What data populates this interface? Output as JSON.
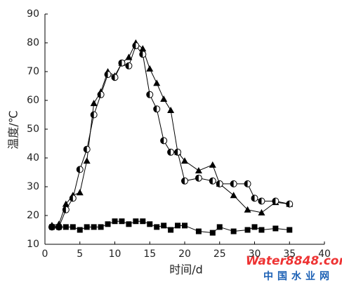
{
  "chart_data": {
    "type": "line",
    "xlabel": "时间/d",
    "ylabel": "温度/℃",
    "xlim": [
      0,
      40
    ],
    "xticks": [
      0,
      5,
      10,
      15,
      20,
      25,
      30,
      35,
      40
    ],
    "ylim": [
      10,
      90
    ],
    "yticks": [
      10,
      20,
      30,
      40,
      50,
      60,
      70,
      80,
      90
    ],
    "series": [
      {
        "marker": "triangle",
        "color": "#000000",
        "x": [
          1,
          2,
          3,
          4,
          5,
          6,
          7,
          8,
          9,
          10,
          11,
          12,
          13,
          14,
          15,
          16,
          17,
          18,
          19,
          20,
          22,
          24,
          25,
          27,
          29,
          31,
          33,
          35
        ],
        "values": [
          16.6,
          17,
          24,
          27,
          28,
          39,
          59,
          63,
          70,
          68.5,
          73,
          75,
          80,
          78,
          71,
          66,
          60.5,
          56.6,
          42,
          39,
          35.6,
          37.6,
          31,
          27,
          22,
          21,
          24.6,
          24
        ]
      },
      {
        "marker": "circle",
        "color": "#000000",
        "x": [
          1,
          2,
          3,
          4,
          5,
          6,
          7,
          8,
          9,
          10,
          11,
          12,
          13,
          14,
          15,
          16,
          17,
          18,
          19,
          20,
          22,
          24,
          25,
          27,
          29,
          30,
          31,
          33,
          35
        ],
        "values": [
          16,
          16,
          22,
          26,
          36,
          43,
          55,
          62,
          69,
          68,
          73,
          72,
          79,
          76,
          62,
          57,
          46,
          42,
          42,
          32,
          33,
          32,
          31,
          31,
          31,
          26,
          25,
          25,
          24
        ]
      },
      {
        "marker": "square",
        "color": "#000000",
        "x": [
          1,
          2,
          3,
          4,
          5,
          6,
          7,
          8,
          9,
          10,
          11,
          12,
          13,
          14,
          15,
          16,
          17,
          18,
          19,
          20,
          22,
          24,
          25,
          27,
          29,
          30,
          31,
          33,
          35
        ],
        "values": [
          16,
          16,
          16,
          16,
          15,
          16,
          16,
          16,
          17,
          18,
          18,
          17,
          18,
          18,
          17,
          16,
          16.5,
          15,
          16.5,
          16.5,
          14.5,
          14,
          16,
          14.5,
          15,
          16,
          15,
          15.5,
          15
        ]
      }
    ]
  },
  "watermark": {
    "logo": "Water8848.com",
    "name": "中国水业网"
  }
}
